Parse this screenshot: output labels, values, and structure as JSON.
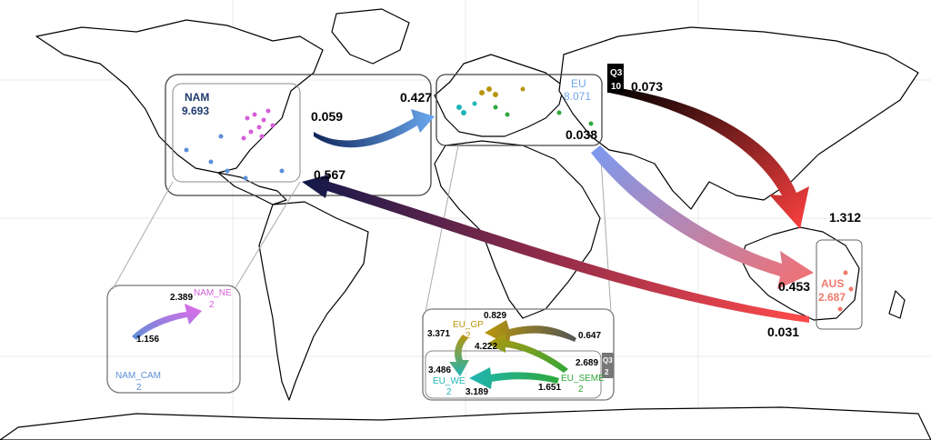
{
  "regions": {
    "nam": {
      "name": "NAM",
      "value": "9.693",
      "color": "#1f3a6e"
    },
    "eu": {
      "name": "EU",
      "value": "8.071",
      "color": "#6fa8e8"
    },
    "aus": {
      "name": "AUS",
      "value": "2.687",
      "color": "#f07a6a"
    }
  },
  "sub_regions": {
    "nam_ne": {
      "name": "NAM_NE",
      "value": "2",
      "color": "#d45fd8"
    },
    "nam_cam": {
      "name": "NAM_CAM",
      "value": "2",
      "color": "#5b8fd8"
    },
    "eu_gp": {
      "name": "EU_GP",
      "value": "2",
      "color": "#b8960c"
    },
    "eu_we": {
      "name": "EU_WE",
      "value": "2",
      "color": "#1fb5b5"
    },
    "eu_seme": {
      "name": "EU_SEME",
      "value": "2",
      "color": "#2ea83a"
    }
  },
  "flows": {
    "nam_to_eu": {
      "from": "0.059",
      "to": "0.427"
    },
    "aus_to_nam": {
      "to": "0.567",
      "from": "0.031"
    },
    "eu_to_aus_blue": {
      "from": "0.038",
      "to": "0.453"
    },
    "eu_to_aus_black": {
      "from": "0.073",
      "to": "1.312"
    },
    "cam_to_ne": {
      "from": "1.156",
      "to": "2.389"
    },
    "seme_to_gp": {
      "from": "0.647",
      "to": "0.829"
    },
    "gp_to_we": {
      "from": "3.371",
      "to": "3.486"
    },
    "seme_to_we": {
      "from": "1.651",
      "to": "3.189"
    },
    "seme_to_gp2": {
      "from": "2.689",
      "to": "4.222"
    }
  },
  "quarter_badges": {
    "eu": {
      "line1": "Q3",
      "line2": "10"
    },
    "eu_inset": {
      "line1": "Q3",
      "line2": "2"
    }
  }
}
